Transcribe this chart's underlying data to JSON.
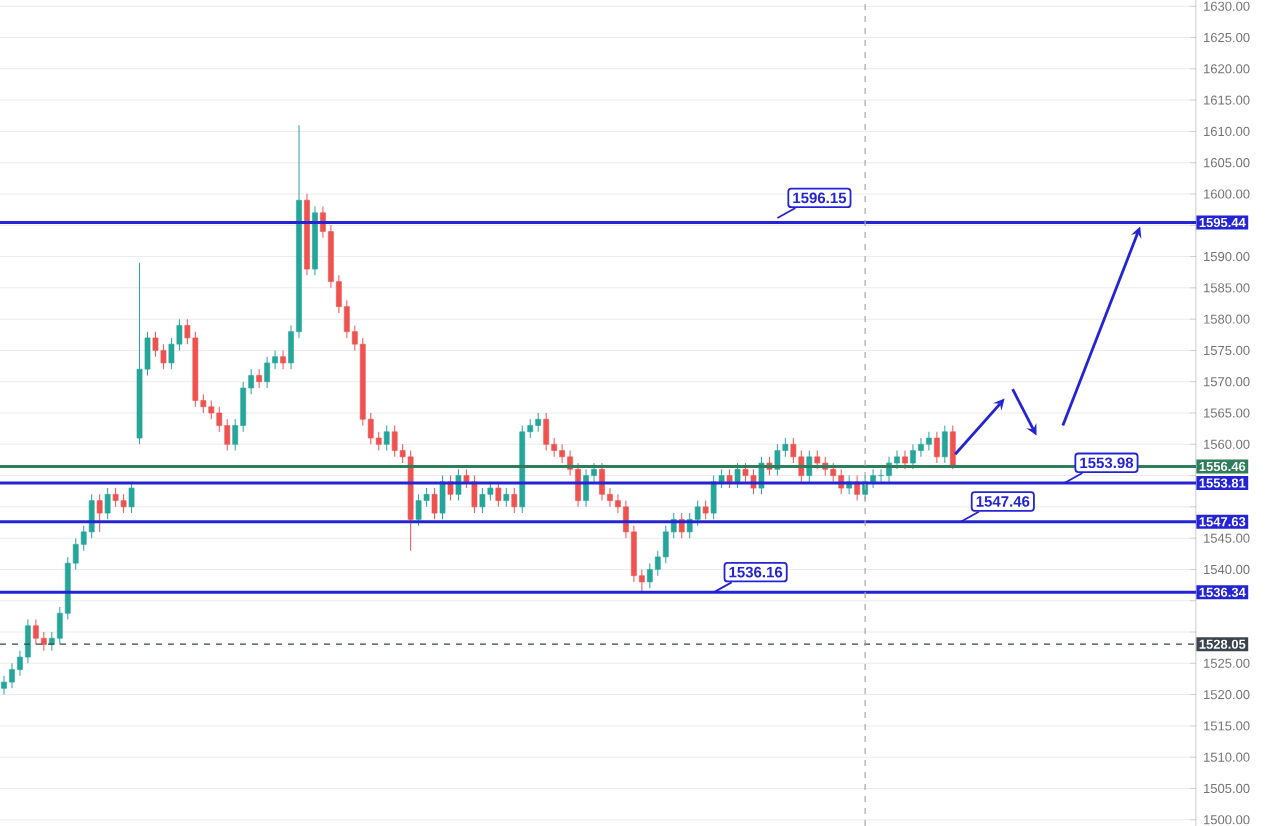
{
  "chart_data": {
    "type": "candlestick",
    "categories": [
      null,
      null,
      null,
      null,
      null,
      null,
      null,
      null,
      null,
      null,
      null,
      null,
      null,
      null,
      null,
      null,
      null,
      null,
      null,
      null,
      null,
      null,
      null,
      null,
      null,
      null,
      null,
      null,
      null,
      null,
      null,
      null,
      null,
      null,
      null,
      null,
      null,
      null,
      null,
      null,
      null,
      null,
      null,
      null,
      null,
      null,
      null,
      null,
      null,
      null,
      null,
      null,
      null,
      null,
      null,
      null,
      null,
      null,
      null,
      null,
      null,
      null,
      null,
      null,
      null,
      null,
      null,
      null,
      null,
      null,
      null,
      null,
      null,
      null,
      null,
      null,
      null,
      null,
      null,
      null,
      null,
      null,
      null,
      null,
      null,
      null,
      null,
      null,
      null,
      null,
      null,
      null,
      null,
      null,
      null,
      null,
      null,
      null,
      null,
      null,
      null,
      null,
      null,
      null,
      null,
      null,
      null,
      null,
      null,
      null,
      null,
      null,
      null,
      null,
      null,
      null,
      null,
      null,
      null,
      null,
      null,
      null,
      null,
      null,
      null,
      null,
      null,
      null,
      null,
      null,
      null,
      null,
      null,
      null,
      null,
      null,
      null,
      null,
      null,
      null,
      null,
      null,
      null,
      null,
      null,
      null,
      null,
      null,
      null,
      null
    ],
    "ohlc": [
      [
        1521,
        1523,
        1520,
        1522
      ],
      [
        1522,
        1525,
        1521,
        1524
      ],
      [
        1524,
        1527,
        1523,
        1526
      ],
      [
        1526,
        1532,
        1525,
        1531
      ],
      [
        1531,
        1532,
        1528,
        1529
      ],
      [
        1529,
        1530,
        1527,
        1528
      ],
      [
        1528,
        1530,
        1527,
        1529
      ],
      [
        1529,
        1534,
        1528,
        1533
      ],
      [
        1533,
        1542,
        1532,
        1541
      ],
      [
        1541,
        1545,
        1540,
        1544
      ],
      [
        1544,
        1547,
        1543,
        1546
      ],
      [
        1546,
        1552,
        1545,
        1551
      ],
      [
        1551,
        1552,
        1546,
        1549
      ],
      [
        1549,
        1553,
        1548,
        1552
      ],
      [
        1552,
        1553,
        1550,
        1551
      ],
      [
        1551,
        1552,
        1549,
        1550
      ],
      [
        1550,
        1554,
        1549,
        1553
      ],
      [
        1561,
        1589,
        1560,
        1572
      ],
      [
        1572,
        1578,
        1571,
        1577
      ],
      [
        1577,
        1578,
        1574,
        1575
      ],
      [
        1575,
        1576,
        1572,
        1573
      ],
      [
        1573,
        1577,
        1572,
        1576
      ],
      [
        1576,
        1580,
        1575,
        1579
      ],
      [
        1579,
        1580,
        1576,
        1577
      ],
      [
        1577,
        1578,
        1566,
        1567
      ],
      [
        1567,
        1568,
        1565,
        1566
      ],
      [
        1566,
        1567,
        1564,
        1565
      ],
      [
        1565,
        1566,
        1562,
        1563
      ],
      [
        1563,
        1564,
        1559,
        1560
      ],
      [
        1560,
        1564,
        1559,
        1563
      ],
      [
        1563,
        1570,
        1562,
        1569
      ],
      [
        1569,
        1572,
        1568,
        1571
      ],
      [
        1571,
        1572,
        1569,
        1570
      ],
      [
        1570,
        1574,
        1569,
        1573
      ],
      [
        1573,
        1575,
        1572,
        1574
      ],
      [
        1574,
        1575,
        1572,
        1573
      ],
      [
        1573,
        1579,
        1572,
        1578
      ],
      [
        1578,
        1611,
        1577,
        1599
      ],
      [
        1599,
        1600,
        1587,
        1588
      ],
      [
        1588,
        1598,
        1587,
        1597
      ],
      [
        1597,
        1598,
        1593,
        1594
      ],
      [
        1594,
        1595,
        1585,
        1586
      ],
      [
        1586,
        1587,
        1581,
        1582
      ],
      [
        1582,
        1583,
        1577,
        1578
      ],
      [
        1578,
        1579,
        1575,
        1576
      ],
      [
        1576,
        1577,
        1563,
        1564
      ],
      [
        1564,
        1565,
        1560,
        1561
      ],
      [
        1561,
        1562,
        1559,
        1560
      ],
      [
        1560,
        1563,
        1559,
        1562
      ],
      [
        1562,
        1563,
        1558,
        1559
      ],
      [
        1559,
        1560,
        1557,
        1558
      ],
      [
        1558,
        1559,
        1543,
        1548
      ],
      [
        1548,
        1552,
        1547,
        1551
      ],
      [
        1551,
        1553,
        1550,
        1552
      ],
      [
        1552,
        1553,
        1548,
        1549
      ],
      [
        1549,
        1555,
        1548,
        1554
      ],
      [
        1554,
        1555,
        1551,
        1552
      ],
      [
        1552,
        1556,
        1551,
        1555
      ],
      [
        1555,
        1556,
        1553,
        1554
      ],
      [
        1554,
        1555,
        1549,
        1550
      ],
      [
        1550,
        1553,
        1549,
        1552
      ],
      [
        1552,
        1554,
        1551,
        1553
      ],
      [
        1553,
        1554,
        1550,
        1551
      ],
      [
        1551,
        1553,
        1550,
        1552
      ],
      [
        1552,
        1553,
        1549,
        1550
      ],
      [
        1550,
        1563,
        1549,
        1562
      ],
      [
        1562,
        1564,
        1561,
        1563
      ],
      [
        1563,
        1565,
        1562,
        1564
      ],
      [
        1564,
        1565,
        1559,
        1560
      ],
      [
        1560,
        1561,
        1558,
        1559
      ],
      [
        1559,
        1560,
        1557,
        1558
      ],
      [
        1558,
        1559,
        1555,
        1556
      ],
      [
        1556,
        1557,
        1550,
        1551
      ],
      [
        1551,
        1556,
        1550,
        1555
      ],
      [
        1555,
        1557,
        1554,
        1556
      ],
      [
        1556,
        1557,
        1551,
        1552
      ],
      [
        1552,
        1553,
        1550,
        1551
      ],
      [
        1551,
        1552,
        1549,
        1550
      ],
      [
        1550,
        1551,
        1545,
        1546
      ],
      [
        1546,
        1547,
        1538,
        1539
      ],
      [
        1539,
        1540,
        1536.5,
        1538
      ],
      [
        1538,
        1541,
        1537,
        1540
      ],
      [
        1540,
        1543,
        1539,
        1542
      ],
      [
        1542,
        1547,
        1541,
        1546
      ],
      [
        1546,
        1549,
        1545,
        1548
      ],
      [
        1548,
        1549,
        1545,
        1546
      ],
      [
        1546,
        1549,
        1545,
        1548
      ],
      [
        1548,
        1551,
        1547,
        1550
      ],
      [
        1550,
        1551,
        1548,
        1549
      ],
      [
        1549,
        1555,
        1548,
        1554
      ],
      [
        1554,
        1556,
        1553,
        1555
      ],
      [
        1555,
        1556,
        1553,
        1554
      ],
      [
        1554,
        1557,
        1553,
        1556
      ],
      [
        1556,
        1557,
        1554,
        1555
      ],
      [
        1555,
        1556,
        1552,
        1553
      ],
      [
        1553,
        1558,
        1552,
        1557
      ],
      [
        1557,
        1558,
        1555,
        1556
      ],
      [
        1556,
        1560,
        1555,
        1559
      ],
      [
        1559,
        1561,
        1558,
        1560
      ],
      [
        1560,
        1561,
        1557,
        1558
      ],
      [
        1558,
        1559,
        1554,
        1555
      ],
      [
        1555,
        1559,
        1554,
        1558
      ],
      [
        1558,
        1559,
        1556,
        1557
      ],
      [
        1557,
        1558,
        1555,
        1556
      ],
      [
        1556,
        1557,
        1554,
        1555
      ],
      [
        1555,
        1556,
        1552,
        1553
      ],
      [
        1553,
        1555,
        1552,
        1554
      ],
      [
        1554,
        1555,
        1551,
        1552
      ],
      [
        1552,
        1555,
        1551,
        1554
      ],
      [
        1554,
        1556,
        1553,
        1555
      ],
      [
        1555,
        1556,
        1554,
        1555
      ],
      [
        1555,
        1558,
        1554,
        1557
      ],
      [
        1557,
        1559,
        1556,
        1558
      ],
      [
        1558,
        1559,
        1556,
        1557
      ],
      [
        1557,
        1560,
        1556,
        1559
      ],
      [
        1559,
        1561,
        1558,
        1560
      ],
      [
        1560,
        1562,
        1559,
        1561
      ],
      [
        1561,
        1562,
        1557,
        1558
      ],
      [
        1558,
        1563,
        1557,
        1562
      ],
      [
        1562,
        1563,
        1556,
        1556.46
      ],
      null,
      null,
      null,
      null,
      null,
      null,
      null,
      null,
      null,
      null,
      null,
      null,
      null,
      null,
      null,
      null,
      null,
      null,
      null,
      null,
      null,
      null,
      null,
      null,
      null,
      null,
      null,
      null,
      null,
      null
    ],
    "ylim": [
      1499,
      1631
    ],
    "yticks": [
      {
        "value": 1500,
        "label": "1500.00"
      },
      {
        "value": 1505,
        "label": "1505.00"
      },
      {
        "value": 1510,
        "label": "1510.00"
      },
      {
        "value": 1515,
        "label": "1515.00"
      },
      {
        "value": 1520,
        "label": "1520.00"
      },
      {
        "value": 1525,
        "label": "1525.00"
      },
      {
        "value": 1530,
        "label": null
      },
      {
        "value": 1535,
        "label": null
      },
      {
        "value": 1540,
        "label": "1540.00"
      },
      {
        "value": 1545,
        "label": "1545.00"
      },
      {
        "value": 1550,
        "label": null
      },
      {
        "value": 1555,
        "label": null
      },
      {
        "value": 1560,
        "label": "1560.00"
      },
      {
        "value": 1565,
        "label": "1565.00"
      },
      {
        "value": 1570,
        "label": "1570.00"
      },
      {
        "value": 1575,
        "label": "1575.00"
      },
      {
        "value": 1580,
        "label": "1580.00"
      },
      {
        "value": 1585,
        "label": "1585.00"
      },
      {
        "value": 1590,
        "label": "1590.00"
      },
      {
        "value": 1595,
        "label": null
      },
      {
        "value": 1600,
        "label": "1600.00"
      },
      {
        "value": 1605,
        "label": "1605.00"
      },
      {
        "value": 1610,
        "label": "1610.00"
      },
      {
        "value": 1615,
        "label": "1615.00"
      },
      {
        "value": 1620,
        "label": "1620.00"
      },
      {
        "value": 1625,
        "label": "1625.00"
      },
      {
        "value": 1630,
        "label": "1630.00"
      }
    ],
    "tick_labels": "y",
    "grid": true,
    "ref_lines": [
      {
        "axis": "y",
        "value": 1595.44,
        "label": "1595.44",
        "color": "#2424d4"
      },
      {
        "axis": "y",
        "value": 1556.46,
        "label": "1556.46",
        "color": "#2e7d5b"
      },
      {
        "axis": "y",
        "value": 1553.81,
        "label": "1553.81",
        "color": "#2424d4"
      },
      {
        "axis": "y",
        "value": 1547.63,
        "label": "1547.63",
        "color": "#2424d4"
      },
      {
        "axis": "y",
        "value": 1536.34,
        "label": "1536.34",
        "color": "#2424d4"
      },
      {
        "axis": "y",
        "value": 1528.05,
        "label": "1528.05",
        "color": "#3d4450",
        "line_style": "dashed"
      }
    ],
    "annotations": [
      {
        "text": "1596.15",
        "y": 1596.15
      },
      {
        "text": "1553.98",
        "y": 1553.81
      },
      {
        "text": "1547.46",
        "y": 1547.63
      },
      {
        "text": "1536.16",
        "y": 1536.34
      }
    ]
  }
}
